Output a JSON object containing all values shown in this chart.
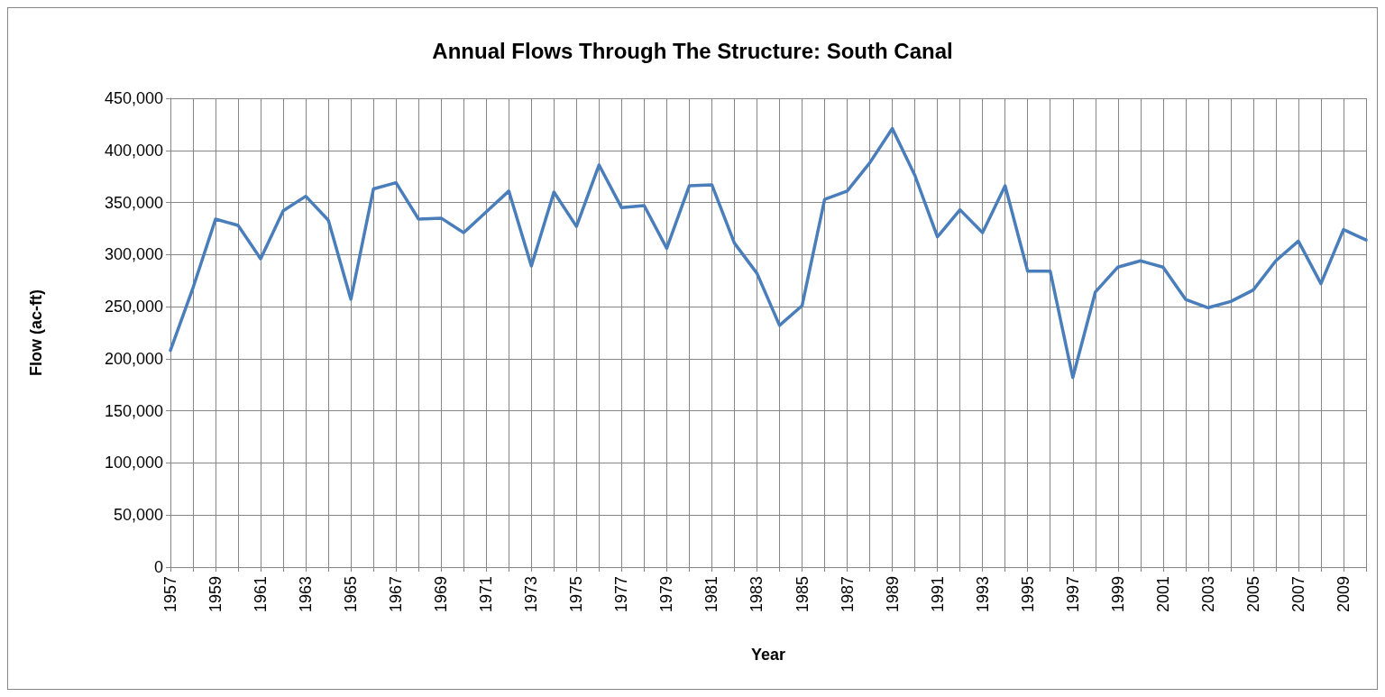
{
  "chart_data": {
    "type": "line",
    "title": "Annual Flows Through The Structure: South Canal",
    "xlabel": "Year",
    "ylabel": "Flow (ac-ft)",
    "categories": [
      "1957",
      null,
      "1959",
      null,
      "1961",
      null,
      "1963",
      null,
      "1965",
      null,
      "1967",
      null,
      "1969",
      null,
      "1971",
      null,
      "1973",
      null,
      "1975",
      null,
      "1977",
      null,
      "1979",
      null,
      "1981",
      null,
      "1983",
      null,
      "1985",
      null,
      "1987",
      null,
      "1989",
      null,
      "1991",
      null,
      "1993",
      null,
      "1995",
      null,
      "1997",
      null,
      "1999",
      null,
      "2001",
      null,
      "2003",
      null,
      "2005",
      null,
      "2007",
      null,
      "2009",
      null
    ],
    "series": [
      {
        "color": "#4a7ebb",
        "values": [
          208000,
          268000,
          334000,
          328000,
          296000,
          342000,
          356000,
          333000,
          257000,
          363000,
          369000,
          334000,
          335000,
          321000,
          341000,
          361000,
          289000,
          360000,
          327000,
          386000,
          345000,
          347000,
          306000,
          366000,
          367000,
          311000,
          282000,
          232000,
          251000,
          353000,
          361000,
          388000,
          421000,
          376000,
          317000,
          343000,
          321000,
          366000,
          284000,
          284000,
          182000,
          264000,
          288000,
          294000,
          288000,
          257000,
          249000,
          255000,
          266000,
          294000,
          313000,
          272000,
          324000,
          314000
        ]
      }
    ],
    "ylim": [
      0,
      450000
    ],
    "yticks": [
      0,
      {
        "value": 50000,
        "label": "50,000"
      },
      {
        "value": 100000,
        "label": "100,000"
      },
      {
        "value": 150000,
        "label": "150,000"
      },
      {
        "value": 200000,
        "label": "200,000"
      },
      {
        "value": 250000,
        "label": "250,000"
      },
      {
        "value": 300000,
        "label": "300,000"
      },
      {
        "value": 350000,
        "label": "350,000"
      },
      {
        "value": 400000,
        "label": "400,000"
      },
      {
        "value": 450000,
        "label": "450,000"
      }
    ],
    "grid": true,
    "marker": "none",
    "line_style": "solid"
  }
}
